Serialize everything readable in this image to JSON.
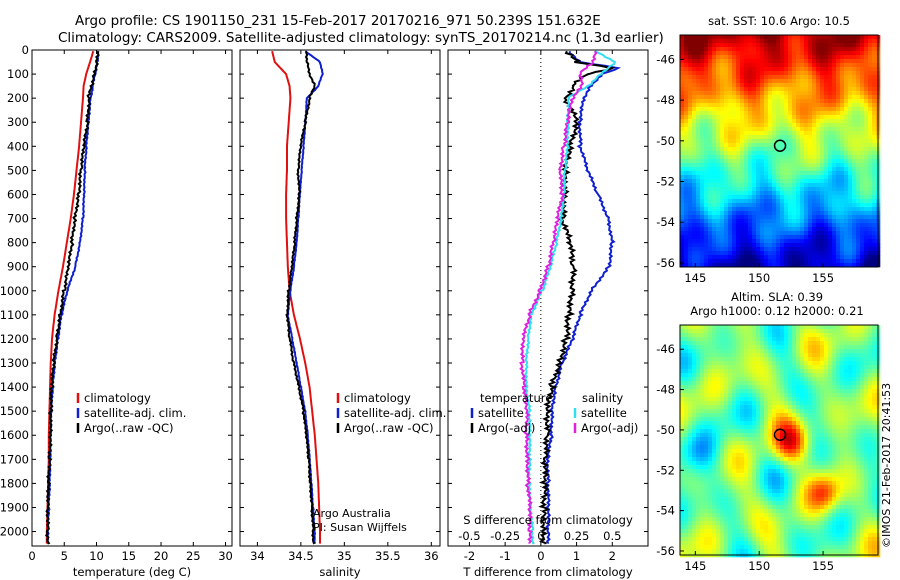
{
  "header": {
    "line1": "Argo profile: CS 1901150_231 15-Feb-2017 20170216_971 50.239S 151.632E",
    "line2": "Climatology: CARS2009. Satellite-adjusted climatology: synTS_20170214.nc (1.3d earlier)"
  },
  "colors": {
    "climatology": "#e01010",
    "satellite": "#1020d0",
    "argo": "#000000",
    "sat_sal": "#30e0f0",
    "argo_sal": "#e020e0"
  },
  "credits": {
    "line1": "Argo Australia",
    "line2": "PI: Susan Wijffels"
  },
  "stamp": "©IMOS 21-Feb-2017 20:41:53",
  "chart_data": [
    {
      "id": "temperature",
      "type": "line",
      "xlabel": "temperature (deg C)",
      "ylabel": "",
      "xlim": [
        0,
        31
      ],
      "ylim": [
        2060,
        0
      ],
      "xticks": [
        "0",
        "5",
        "10",
        "15",
        "20",
        "25",
        "30"
      ],
      "yticks": [
        "0",
        "100",
        "200",
        "300",
        "400",
        "500",
        "600",
        "700",
        "800",
        "900",
        "1000",
        "1100",
        "1200",
        "1300",
        "1400",
        "1500",
        "1600",
        "1700",
        "1800",
        "1900",
        "2000"
      ],
      "legend": [
        "climatology",
        "satellite-adj. clim.",
        "Argo(..raw -QC)"
      ],
      "series": [
        {
          "name": "climatology",
          "depth": [
            5,
            50,
            100,
            150,
            200,
            300,
            400,
            500,
            600,
            700,
            800,
            900,
            1000,
            1100,
            1200,
            1300,
            1400,
            1500,
            1600,
            1700,
            1800,
            1900,
            2000,
            2050
          ],
          "values": [
            9.5,
            9.0,
            8.4,
            8.0,
            7.9,
            7.6,
            7.3,
            6.9,
            6.5,
            6.0,
            5.4,
            4.8,
            4.1,
            3.5,
            3.1,
            2.9,
            2.8,
            2.7,
            2.6,
            2.6,
            2.5,
            2.4,
            2.3,
            2.3
          ]
        },
        {
          "name": "satellite-adj. clim.",
          "depth": [
            5,
            50,
            100,
            150,
            200,
            300,
            400,
            500,
            600,
            700,
            800,
            900,
            1000,
            1100,
            1200,
            1300,
            1400,
            1500,
            1600,
            1700,
            1800,
            1900,
            2000,
            2050
          ],
          "values": [
            10.3,
            10.1,
            9.8,
            9.4,
            9.1,
            8.7,
            8.4,
            8.2,
            8.1,
            7.9,
            7.4,
            6.7,
            5.5,
            4.6,
            4.0,
            3.5,
            3.2,
            3.0,
            2.9,
            2.8,
            2.7,
            2.6,
            2.5,
            2.5
          ]
        },
        {
          "name": "Argo(..raw -QC)",
          "depth": [
            5,
            50,
            100,
            150,
            200,
            300,
            400,
            500,
            600,
            700,
            800,
            900,
            1000,
            1100,
            1200,
            1300,
            1400,
            1500,
            1600,
            1700,
            1800,
            1900,
            2000,
            2050
          ],
          "values": [
            10.2,
            10.0,
            9.7,
            9.2,
            8.8,
            8.6,
            8.1,
            7.6,
            7.2,
            6.6,
            6.2,
            5.7,
            5.0,
            4.3,
            3.8,
            3.4,
            3.1,
            2.9,
            2.8,
            2.7,
            2.6,
            2.5,
            2.4,
            2.4
          ]
        }
      ]
    },
    {
      "id": "salinity",
      "type": "line",
      "xlabel": "salinity",
      "ylabel": "",
      "xlim": [
        33.8,
        36.1
      ],
      "ylim": [
        2060,
        0
      ],
      "xticks": [
        "34",
        "34.5",
        "35",
        "35.5",
        "36"
      ],
      "legend": [
        "climatology",
        "satellite-adj. clim.",
        "Argo(..raw -QC)"
      ],
      "series": [
        {
          "name": "climatology",
          "depth": [
            5,
            50,
            100,
            150,
            200,
            300,
            400,
            500,
            600,
            700,
            800,
            900,
            1000,
            1100,
            1200,
            1300,
            1400,
            1500,
            1600,
            1700,
            1800,
            1900,
            2000,
            2050
          ],
          "values": [
            34.17,
            34.2,
            34.33,
            34.37,
            34.38,
            34.36,
            34.34,
            34.34,
            34.33,
            34.33,
            34.34,
            34.35,
            34.37,
            34.42,
            34.49,
            34.55,
            34.6,
            34.63,
            34.66,
            34.68,
            34.7,
            34.71,
            34.72,
            34.72
          ]
        },
        {
          "name": "satellite-adj. clim.",
          "depth": [
            5,
            50,
            100,
            150,
            200,
            300,
            400,
            500,
            600,
            700,
            800,
            900,
            1000,
            1100,
            1200,
            1300,
            1400,
            1500,
            1600,
            1700,
            1800,
            1900,
            2000,
            2050
          ],
          "values": [
            34.55,
            34.72,
            34.75,
            34.7,
            34.57,
            34.55,
            34.53,
            34.51,
            34.49,
            34.47,
            34.45,
            34.42,
            34.38,
            34.35,
            34.4,
            34.45,
            34.5,
            34.55,
            34.58,
            34.6,
            34.62,
            34.64,
            34.66,
            34.66
          ]
        },
        {
          "name": "Argo(..raw -QC)",
          "depth": [
            5,
            50,
            100,
            150,
            200,
            300,
            400,
            500,
            600,
            700,
            800,
            900,
            1000,
            1100,
            1200,
            1300,
            1400,
            1500,
            1600,
            1700,
            1800,
            1900,
            2000,
            2050
          ],
          "values": [
            34.56,
            34.57,
            34.6,
            34.66,
            34.6,
            34.55,
            34.5,
            34.47,
            34.48,
            34.45,
            34.43,
            34.4,
            34.36,
            34.34,
            34.37,
            34.42,
            34.48,
            34.53,
            34.56,
            34.59,
            34.61,
            34.63,
            34.64,
            34.64
          ]
        }
      ]
    },
    {
      "id": "difference",
      "type": "line",
      "xlabel": "T difference from climatology",
      "secondary_xlabel": "S difference from climatology",
      "xlim": [
        -2.6,
        3.0
      ],
      "ylim": [
        2060,
        0
      ],
      "xticks": [
        "-2",
        "-1",
        "0",
        "1",
        "2"
      ],
      "secondary_xticks": [
        "-0.5",
        "-0.25",
        "0",
        "0.25",
        "0.5"
      ],
      "legend_groups": [
        {
          "title": "temperature",
          "items": [
            "satellite",
            "Argo(-adj)"
          ]
        },
        {
          "title": "salinity",
          "items": [
            "satellite",
            "Argo(-adj)"
          ]
        }
      ],
      "series": [
        {
          "name": "temperature satellite",
          "depth": [
            5,
            50,
            75,
            100,
            150,
            200,
            300,
            400,
            500,
            600,
            700,
            800,
            900,
            1000,
            1100,
            1200,
            1300,
            1400,
            1500,
            1600,
            1700,
            1800,
            1900,
            2000,
            2050
          ],
          "values": [
            0.8,
            1.1,
            2.2,
            1.7,
            1.4,
            1.2,
            1.1,
            1.1,
            1.3,
            1.6,
            1.9,
            2.0,
            1.9,
            1.4,
            1.1,
            0.9,
            0.6,
            0.4,
            0.3,
            0.3,
            0.2,
            0.2,
            0.2,
            0.2,
            0.2
          ]
        },
        {
          "name": "temperature Argo(-adj)",
          "depth": [
            5,
            50,
            75,
            100,
            150,
            200,
            300,
            400,
            500,
            600,
            700,
            800,
            900,
            1000,
            1100,
            1200,
            1300,
            1400,
            1500,
            1600,
            1700,
            1800,
            1900,
            2000,
            2050
          ],
          "values": [
            0.7,
            1.0,
            2.0,
            1.3,
            0.9,
            0.7,
            1.0,
            0.8,
            0.7,
            0.7,
            0.6,
            0.8,
            0.9,
            0.9,
            0.8,
            0.7,
            0.5,
            0.3,
            0.2,
            0.2,
            0.1,
            0.1,
            0.1,
            0.1,
            0.1
          ]
        },
        {
          "name": "salinity satellite",
          "depth": [
            5,
            50,
            100,
            150,
            200,
            300,
            400,
            500,
            600,
            700,
            800,
            900,
            1000,
            1100,
            1200,
            1300,
            1400,
            1500,
            1600,
            1700,
            1800,
            1900,
            2000,
            2050
          ],
          "values": [
            0.38,
            0.52,
            0.42,
            0.33,
            0.19,
            0.19,
            0.19,
            0.17,
            0.16,
            0.14,
            0.11,
            0.07,
            0.01,
            -0.07,
            -0.09,
            -0.1,
            -0.1,
            -0.08,
            -0.08,
            -0.08,
            -0.08,
            -0.07,
            -0.06,
            -0.06
          ]
        },
        {
          "name": "salinity Argo(-adj)",
          "depth": [
            5,
            50,
            100,
            150,
            200,
            300,
            400,
            500,
            600,
            700,
            800,
            900,
            1000,
            1100,
            1200,
            1300,
            1400,
            1500,
            1600,
            1700,
            1800,
            1900,
            2000,
            2050
          ],
          "values": [
            0.39,
            0.37,
            0.27,
            0.29,
            0.22,
            0.19,
            0.16,
            0.13,
            0.15,
            0.12,
            0.09,
            0.05,
            -0.01,
            -0.08,
            -0.12,
            -0.13,
            -0.12,
            -0.1,
            -0.1,
            -0.09,
            -0.09,
            -0.08,
            -0.08,
            -0.08
          ]
        }
      ]
    },
    {
      "id": "sst_map",
      "type": "heatmap",
      "title": "sat. SST: 10.6 Argo: 10.5",
      "xlim": [
        143.8,
        159.3
      ],
      "ylim": [
        -56.2,
        -44.8
      ],
      "xticks": [
        "145",
        "150",
        "155"
      ],
      "yticks": [
        "-46",
        "-48",
        "-50",
        "-52",
        "-54",
        "-56"
      ],
      "marker": {
        "lon": 151.632,
        "lat": -50.239
      }
    },
    {
      "id": "sla_map",
      "type": "heatmap",
      "title": "Altim. SLA: 0.39",
      "subtitle": "Argo h1000: 0.12 h2000: 0.21",
      "xlim": [
        143.8,
        159.3
      ],
      "ylim": [
        -56.2,
        -44.8
      ],
      "xticks": [
        "145",
        "150",
        "155"
      ],
      "yticks": [
        "-46",
        "-48",
        "-50",
        "-52",
        "-54",
        "-56"
      ],
      "marker": {
        "lon": 151.632,
        "lat": -50.239
      }
    }
  ]
}
